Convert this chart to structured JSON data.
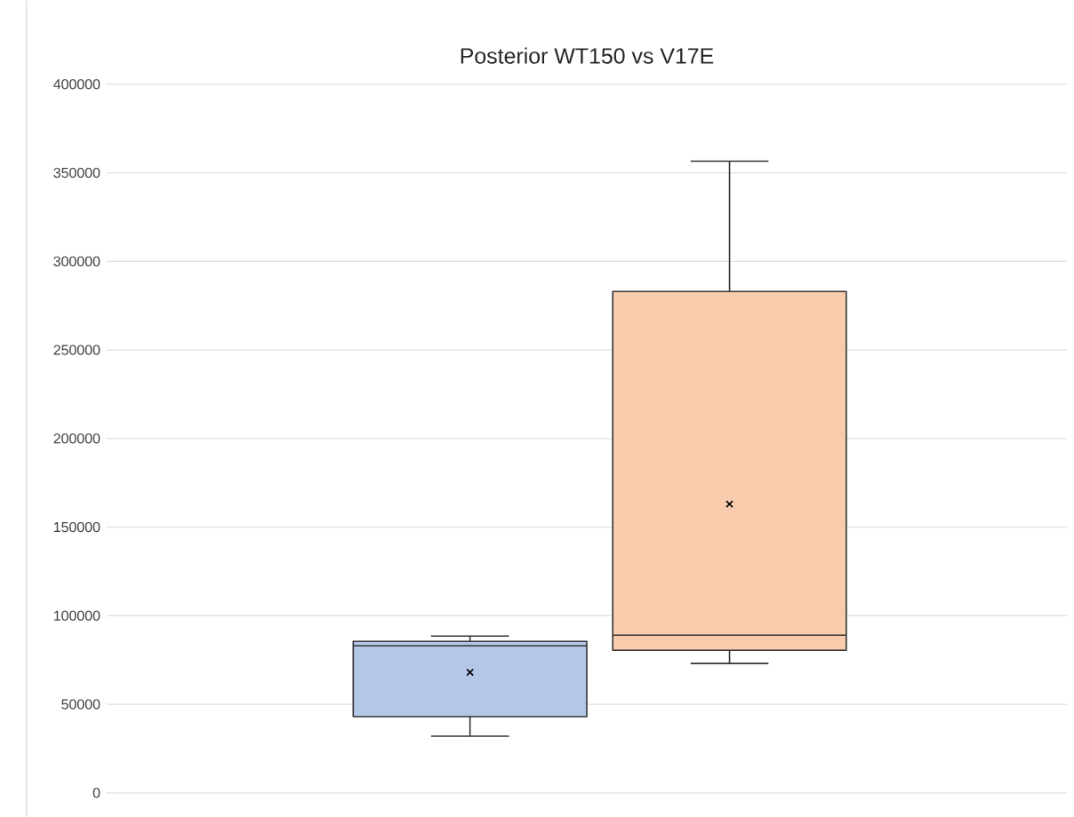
{
  "chart_data": {
    "type": "box",
    "title": "Posterior WT150 vs V17E",
    "categories": [
      null,
      null
    ],
    "boxes": [
      {
        "low": 32000,
        "q1": 43000,
        "median": 83000,
        "q3": 85500,
        "high": 88500,
        "mean": 68000
      },
      {
        "low": 73000,
        "q1": 80500,
        "median": 89000,
        "q3": 283000,
        "high": 356500,
        "mean": 163000
      }
    ],
    "colors": [
      "#b4c7e7",
      "#f8cbad"
    ],
    "ylim": [
      0,
      400000
    ],
    "yticks": [
      0,
      50000,
      100000,
      150000,
      200000,
      250000,
      300000,
      350000,
      400000
    ],
    "grid": "y",
    "tick_labels": "y"
  }
}
